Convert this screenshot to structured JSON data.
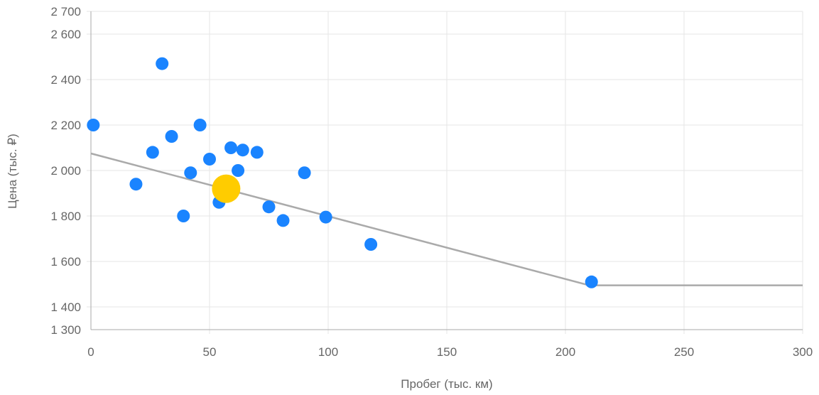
{
  "chart_data": {
    "type": "scatter",
    "xlabel": "Пробег (тыс. км)",
    "ylabel": "Цена (тыс. ₽)",
    "xlim": [
      0,
      300
    ],
    "ylim": [
      1300,
      2700
    ],
    "x_ticks": [
      0,
      50,
      100,
      150,
      200,
      250,
      300
    ],
    "x_tick_labels": [
      "0",
      "50",
      "100",
      "150",
      "200",
      "250",
      "300"
    ],
    "y_ticks": [
      1300,
      1400,
      1600,
      1800,
      2000,
      2200,
      2400,
      2600,
      2700
    ],
    "y_tick_labels": [
      "1 300",
      "1 400",
      "1 600",
      "1 800",
      "2 000",
      "2 200",
      "2 400",
      "2 600",
      "2 700"
    ],
    "grid": true,
    "colors": {
      "points": "#1a84ff",
      "highlight": "#ffcc00",
      "trend": "#aaaaaa",
      "grid": "#e6e6e6",
      "axis": "#aaaaaa",
      "text": "#666666"
    },
    "series": [
      {
        "values": [
          [
            1,
            2200
          ],
          [
            19,
            1940
          ],
          [
            26,
            2080
          ],
          [
            30,
            2470
          ],
          [
            34,
            2150
          ],
          [
            39,
            1800
          ],
          [
            42,
            1990
          ],
          [
            46,
            2200
          ],
          [
            50,
            2050
          ],
          [
            54,
            1860
          ],
          [
            59,
            2100
          ],
          [
            62,
            2000
          ],
          [
            64,
            2090
          ],
          [
            70,
            2080
          ],
          [
            75,
            1840
          ],
          [
            81,
            1780
          ],
          [
            90,
            1990
          ],
          [
            99,
            1795
          ],
          [
            118,
            1675
          ],
          [
            211,
            1510
          ]
        ]
      },
      {
        "values": [
          [
            57,
            1920
          ]
        ]
      }
    ],
    "trend_line": [
      [
        0,
        2075
      ],
      [
        210,
        1495
      ],
      [
        300,
        1495
      ]
    ]
  }
}
